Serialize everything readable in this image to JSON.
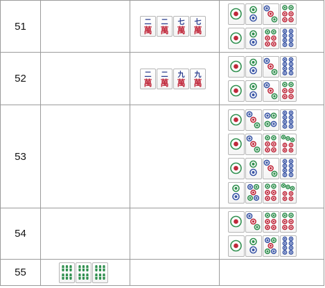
{
  "colors": {
    "border": "#9a9a9a",
    "man_red": "#c0283b",
    "man_blue": "#2a3d8f",
    "pin_green": "#2f8f4e",
    "pin_red": "#c0283b",
    "pin_blue": "#3a56a6",
    "sou_green": "#2f8f4e"
  },
  "rows": [
    {
      "number": "51",
      "col2": [],
      "col3": [
        "2m",
        "2m",
        "7m",
        "7m"
      ],
      "col4": [
        [
          "1p",
          "2p",
          "3p",
          "6p"
        ],
        [
          "1p",
          "2p",
          "6p",
          "8p"
        ]
      ]
    },
    {
      "number": "52",
      "col2": [],
      "col3": [
        "2m",
        "2m",
        "9m",
        "9m"
      ],
      "col4": [
        [
          "1p",
          "2p",
          "3p",
          "8p"
        ],
        [
          "1p",
          "2p",
          "3p",
          "6p"
        ]
      ]
    },
    {
      "number": "53",
      "col2": [],
      "col3": [],
      "col4": [
        [
          "1p",
          "3p",
          "4p",
          "8p"
        ],
        [
          "1p",
          "3p",
          "6p",
          "7p"
        ],
        [
          "1p",
          "2p",
          "3p",
          "8p"
        ],
        [
          "2p",
          "5p",
          "6p",
          "7p"
        ]
      ]
    },
    {
      "number": "54",
      "col2": [],
      "col3": [],
      "col4": [
        [
          "1p",
          "3p",
          "6p",
          "6p"
        ],
        [
          "1p",
          "2p",
          "5p",
          "8p"
        ]
      ]
    },
    {
      "number": "55",
      "col2": [
        "6s",
        "6s",
        "6s"
      ],
      "col3": [],
      "col4": []
    }
  ],
  "tile_glyphs": {
    "2m": "二",
    "7m": "七",
    "9m": "九",
    "man": "萬"
  }
}
